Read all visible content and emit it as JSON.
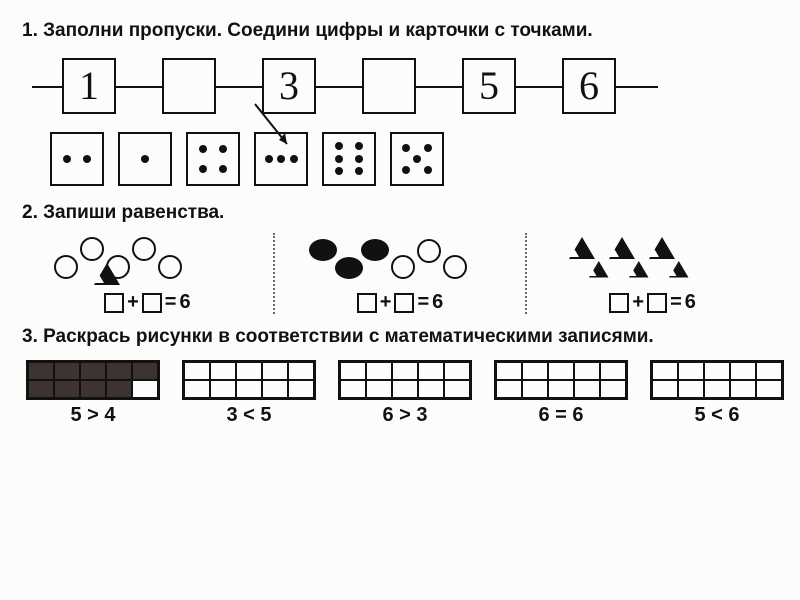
{
  "task1": {
    "title": "1. Заполни пропуски. Соедини цифры и карточки с точками.",
    "boxes": [
      "1",
      "",
      "3",
      "",
      "5",
      "6"
    ],
    "dice": [
      2,
      1,
      4,
      3,
      6,
      5
    ]
  },
  "task2": {
    "title": "2. Запиши равенства.",
    "groups": [
      {
        "type": "circles-triangle",
        "circles": 5,
        "triangles": 1,
        "filled": 0,
        "result": "6"
      },
      {
        "type": "ovals-filled",
        "filled": 3,
        "empty": 3,
        "result": "6"
      },
      {
        "type": "triangles-row",
        "big": 3,
        "small": 3,
        "result": "6"
      }
    ]
  },
  "task3": {
    "title": "3. Раскрась рисунки в соответствии с математическими записями.",
    "grids": [
      {
        "label": "5 > 4",
        "dark_cells": [
          0,
          1,
          2,
          3,
          4,
          5,
          6,
          7,
          8
        ]
      },
      {
        "label": "3 < 5",
        "dark_cells": []
      },
      {
        "label": "6 > 3",
        "dark_cells": []
      },
      {
        "label": "6 = 6",
        "dark_cells": []
      },
      {
        "label": "5 < 6",
        "dark_cells": []
      }
    ]
  },
  "colors": {
    "ink": "#111111",
    "paper": "#fcfcfa",
    "dark_fill": "#3d3330"
  }
}
